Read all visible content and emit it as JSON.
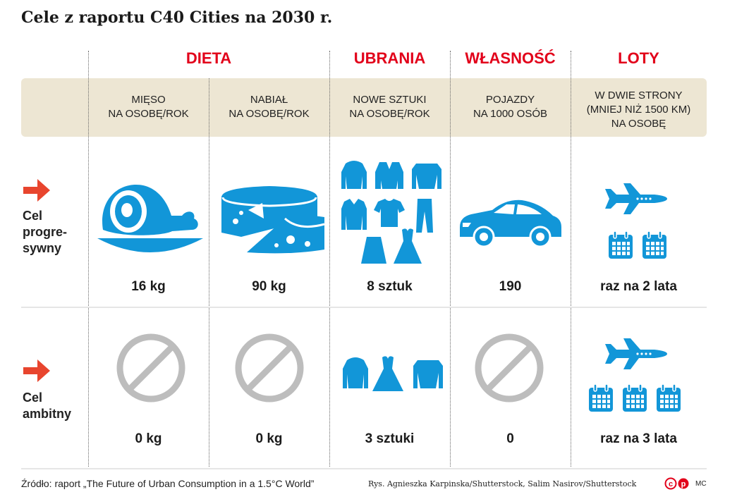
{
  "title": "Cele z raportu C40 Cities na 2030 r.",
  "colors": {
    "accent_red": "#e2001a",
    "icon_blue": "#1296d8",
    "band_beige": "#ede6d3",
    "forbidden_gray": "#bdbdbd"
  },
  "categories": {
    "dieta": "DIETA",
    "ubrania": "UBRANIA",
    "wlasnosc": "WŁASNOŚĆ",
    "loty": "LOTY"
  },
  "columns": {
    "mieso": [
      "MIĘSO",
      "NA OSOBĘ/ROK"
    ],
    "nabial": [
      "NABIAŁ",
      "NA OSOBĘ/ROK"
    ],
    "ubrania": [
      "NOWE SZTUKI",
      "NA OSOBĘ/ROK"
    ],
    "pojazdy": [
      "POJAZDY",
      "NA 1000 OSÓB"
    ],
    "loty": [
      "W DWIE STRONY",
      "(MNIEJ NIŻ 1500 KM)",
      "NA OSOBĘ"
    ]
  },
  "rows": {
    "progresywny": {
      "label": [
        "Cel",
        "progre-",
        "sywny"
      ],
      "values": [
        "16 kg",
        "90 kg",
        "8 sztuk",
        "190",
        "raz na 2 lata"
      ],
      "icons": [
        "ham-icon",
        "cheese-icon",
        "clothes-icon",
        "car-icon",
        "airplane-icon",
        "calendar-icon"
      ]
    },
    "ambitny": {
      "label": [
        "Cel",
        "ambitny"
      ],
      "values": [
        "0 kg",
        "0 kg",
        "3 sztuki",
        "0",
        "raz na 3 lata"
      ],
      "icons": [
        "forbidden-icon",
        "clothes-icon",
        "airplane-icon",
        "calendar-icon"
      ]
    }
  },
  "footer": {
    "source": "Źródło: raport „The Future of Urban Consumption in a 1.5°C World”",
    "credits": "Rys. Agnieszka Karpinska/Shutterstock, Salim Nasirov/Shutterstock",
    "logo": "cp",
    "initials": "MC"
  }
}
